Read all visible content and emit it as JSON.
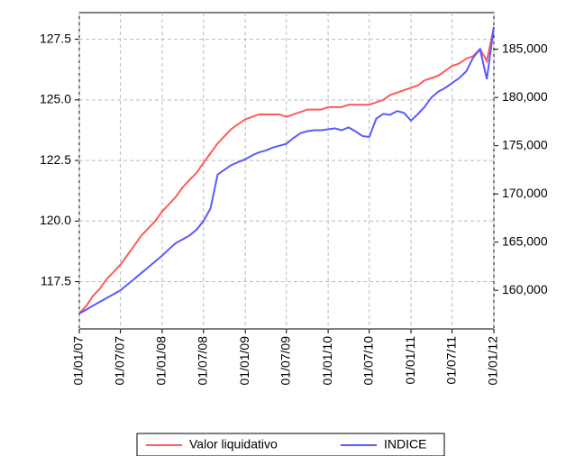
{
  "chart_data": {
    "type": "line",
    "x": [
      "2007-01-01",
      "2007-02-01",
      "2007-03-01",
      "2007-04-01",
      "2007-05-01",
      "2007-06-01",
      "2007-07-01",
      "2007-08-01",
      "2007-09-01",
      "2007-10-01",
      "2007-11-01",
      "2007-12-01",
      "2008-01-01",
      "2008-02-01",
      "2008-03-01",
      "2008-04-01",
      "2008-05-01",
      "2008-06-01",
      "2008-07-01",
      "2008-08-01",
      "2008-09-01",
      "2008-10-01",
      "2008-11-01",
      "2008-12-01",
      "2009-01-01",
      "2009-02-01",
      "2009-03-01",
      "2009-04-01",
      "2009-05-01",
      "2009-06-01",
      "2009-07-01",
      "2009-08-01",
      "2009-09-01",
      "2009-10-01",
      "2009-11-01",
      "2009-12-01",
      "2010-01-01",
      "2010-02-01",
      "2010-03-01",
      "2010-04-01",
      "2010-05-01",
      "2010-06-01",
      "2010-07-01",
      "2010-08-01",
      "2010-09-01",
      "2010-10-01",
      "2010-11-01",
      "2010-12-01",
      "2011-01-01",
      "2011-02-01",
      "2011-03-01",
      "2011-04-01",
      "2011-05-01",
      "2011-06-01",
      "2011-07-01",
      "2011-08-01",
      "2011-09-01",
      "2011-10-01",
      "2011-11-01",
      "2011-12-01",
      "2012-01-01"
    ],
    "series": [
      {
        "name": "Valor liquidativo",
        "color": "#ff5a5a",
        "values": [
          116.2,
          116.5,
          116.9,
          117.2,
          117.6,
          117.9,
          118.2,
          118.6,
          119.0,
          119.4,
          119.7,
          120.0,
          120.4,
          120.7,
          121.0,
          121.4,
          121.7,
          122.0,
          122.4,
          122.8,
          123.2,
          123.5,
          123.8,
          124.0,
          124.2,
          124.3,
          124.4,
          124.4,
          124.4,
          124.4,
          124.3,
          124.4,
          124.5,
          124.6,
          124.6,
          124.6,
          124.7,
          124.7,
          124.7,
          124.8,
          124.8,
          124.8,
          124.8,
          124.9,
          125.0,
          125.2,
          125.3,
          125.4,
          125.5,
          125.6,
          125.8,
          125.9,
          126.0,
          126.2,
          126.4,
          126.5,
          126.7,
          126.8,
          127.1,
          126.6,
          128.0
        ]
      },
      {
        "name": "INDICE",
        "color": "#5a5aff",
        "axis": "y2",
        "values": [
          157600,
          158000,
          158400,
          158800,
          159200,
          159600,
          160000,
          160600,
          161200,
          161800,
          162400,
          163000,
          163600,
          164300,
          164900,
          165300,
          165700,
          166300,
          167200,
          168500,
          172000,
          172500,
          173000,
          173300,
          173600,
          174000,
          174300,
          174500,
          174800,
          175000,
          175200,
          175800,
          176300,
          176500,
          176600,
          176600,
          176700,
          176800,
          176600,
          176900,
          176500,
          176000,
          175900,
          177800,
          178300,
          178200,
          178600,
          178400,
          177600,
          178300,
          179000,
          180000,
          180600,
          181000,
          181500,
          182000,
          182700,
          184100,
          185000,
          181900,
          187300
        ]
      }
    ],
    "xlim": [
      "2007-01-01",
      "2012-01-01"
    ],
    "xticks": [
      {
        "value": "2007-01-01",
        "label": "01/01/07"
      },
      {
        "value": "2007-07-01",
        "label": "01/07/07"
      },
      {
        "value": "2008-01-01",
        "label": "01/01/08"
      },
      {
        "value": "2008-07-01",
        "label": "01/07/08"
      },
      {
        "value": "2009-01-01",
        "label": "01/01/09"
      },
      {
        "value": "2009-07-01",
        "label": "01/07/09"
      },
      {
        "value": "2010-01-01",
        "label": "01/01/10"
      },
      {
        "value": "2010-07-01",
        "label": "01/07/10"
      },
      {
        "value": "2011-01-01",
        "label": "01/01/11"
      },
      {
        "value": "2011-07-01",
        "label": "01/07/11"
      },
      {
        "value": "2012-01-01",
        "label": "01/01/12"
      }
    ],
    "ylim": [
      115.55,
      128.6
    ],
    "yticks": [
      117.5,
      {
        "value": 120,
        "label": "120.0"
      },
      122.5,
      {
        "value": 125,
        "label": "125.0"
      },
      127.5
    ],
    "y2lim": [
      156000,
      188800
    ],
    "y2ticks": [
      {
        "value": 160000,
        "label": "160,000"
      },
      {
        "value": 165000,
        "label": "165,000"
      },
      {
        "value": 170000,
        "label": "170,000"
      },
      {
        "value": 175000,
        "label": "175,000"
      },
      {
        "value": 180000,
        "label": "180,000"
      },
      {
        "value": 185000,
        "label": "185,000"
      }
    ],
    "grid": true,
    "legend": "bottom"
  }
}
